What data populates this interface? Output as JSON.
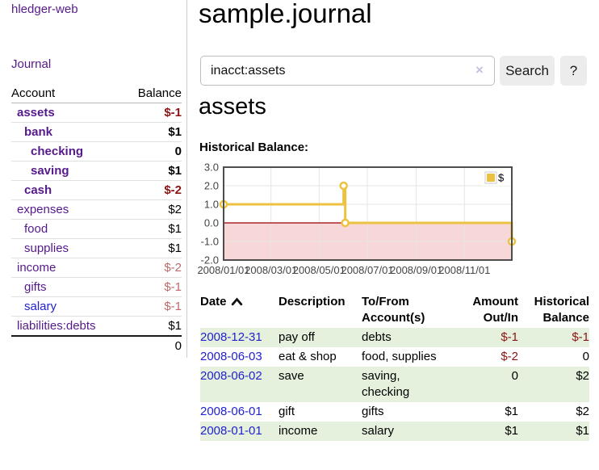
{
  "app": {
    "title_link": "hledger-web",
    "nav": [
      {
        "label": "Journal"
      }
    ]
  },
  "colors": {
    "link_purple": "#551a8b",
    "link_blue": "#2222cc",
    "negative": "#8b1414",
    "negative_soft": "#bb6a6a",
    "row_stripe_green": "#e5f1dd",
    "chart_line_gold": "#edc240",
    "chart_negative_band": "#f7d7d7",
    "chart_zero_line": "#990000",
    "chart_grid": "#e5e5e5",
    "chart_border": "#4d4d4d"
  },
  "sidebar_table": {
    "headers": {
      "account": "Account",
      "balance": "Balance"
    },
    "rows": [
      {
        "account": "assets",
        "indent": 1,
        "emphasis": true,
        "link_tone": "purple",
        "balance": "$-1",
        "balance_tone": "negative"
      },
      {
        "account": "bank",
        "indent": 2,
        "emphasis": true,
        "link_tone": "purple",
        "balance": "$1",
        "balance_tone": "normal"
      },
      {
        "account": "checking",
        "indent": 3,
        "emphasis": true,
        "link_tone": "purple",
        "balance": "0",
        "balance_tone": "normal"
      },
      {
        "account": "saving",
        "indent": 3,
        "emphasis": true,
        "link_tone": "purple",
        "balance": "$1",
        "balance_tone": "normal"
      },
      {
        "account": "cash",
        "indent": 2,
        "emphasis": true,
        "link_tone": "purple",
        "balance": "$-2",
        "balance_tone": "negative"
      },
      {
        "account": "expenses",
        "indent": 1,
        "emphasis": false,
        "link_tone": "purple",
        "balance": "$2",
        "balance_tone": "normal"
      },
      {
        "account": "food",
        "indent": 2,
        "emphasis": false,
        "link_tone": "purple",
        "balance": "$1",
        "balance_tone": "normal"
      },
      {
        "account": "supplies",
        "indent": 2,
        "emphasis": false,
        "link_tone": "purple",
        "balance": "$1",
        "balance_tone": "normal"
      },
      {
        "account": "income",
        "indent": 1,
        "emphasis": false,
        "link_tone": "purple",
        "balance": "$-2",
        "balance_tone": "negative-soft"
      },
      {
        "account": "gifts",
        "indent": 2,
        "emphasis": false,
        "link_tone": "purple",
        "balance": "$-1",
        "balance_tone": "negative-soft"
      },
      {
        "account": "salary",
        "indent": 2,
        "emphasis": false,
        "link_tone": "blue",
        "balance": "$-1",
        "balance_tone": "negative-soft"
      },
      {
        "account": "liabilities:debts",
        "indent": 1,
        "emphasis": false,
        "link_tone": "purple",
        "balance": "$1",
        "balance_tone": "normal"
      }
    ],
    "total": "0"
  },
  "header": {
    "title": "sample.journal"
  },
  "search": {
    "value": "inacct:assets",
    "clear_icon": "×",
    "search_button": "Search",
    "help_button": "?"
  },
  "account_page": {
    "heading": "assets",
    "chart_label": "Historical Balance:"
  },
  "chart_data": {
    "type": "line",
    "title": "Historical Balance:",
    "series": [
      {
        "name": "$",
        "color": "#edc240",
        "step": true,
        "points": [
          {
            "date": "2008-01-01",
            "value": 1
          },
          {
            "date": "2008-06-01",
            "value": 2
          },
          {
            "date": "2008-06-03",
            "value": 0
          },
          {
            "date": "2008-12-31",
            "value": -1
          }
        ]
      }
    ],
    "ylim": [
      -2,
      3
    ],
    "yticks": [
      3,
      2,
      1,
      0,
      -1,
      -2
    ],
    "xticks": [
      {
        "date": "2008-01-01",
        "label": "2008/01/01"
      },
      {
        "date": "2008-03-01",
        "label": "2008/03/01"
      },
      {
        "date": "2008-05-01",
        "label": "2008/05/01"
      },
      {
        "date": "2008-07-01",
        "label": "2008/07/01"
      },
      {
        "date": "2008-09-01",
        "label": "2008/09/01"
      },
      {
        "date": "2008-11-01",
        "label": "2008/11/01"
      }
    ],
    "x_range": [
      "2008-01-01",
      "2008-12-31"
    ],
    "grid": true,
    "legend_position": "top-right",
    "legend_label": "$",
    "zero_line_color": "#990000",
    "negative_region": {
      "from": 0,
      "to": -2,
      "color": "#f7d7d7"
    },
    "grid_color": "#e5e5e5",
    "border_color": "#4d4d4d"
  },
  "register": {
    "columns": [
      {
        "label": "Date",
        "sortable": true,
        "sort": "ascending",
        "align": "left"
      },
      {
        "label": "Description",
        "align": "left"
      },
      {
        "label": "To/From Account(s)",
        "align": "left"
      },
      {
        "label": "Amount Out/In",
        "align": "right"
      },
      {
        "label": "Historical Balance",
        "align": "right"
      }
    ],
    "rows": [
      {
        "date": "2008-12-31",
        "description": "pay off",
        "accounts": "debts",
        "amount": "$-1",
        "amount_tone": "negative",
        "balance": "$-1",
        "balance_tone": "negative"
      },
      {
        "date": "2008-06-03",
        "description": "eat & shop",
        "accounts": "food, supplies",
        "amount": "$-2",
        "amount_tone": "negative",
        "balance": "0",
        "balance_tone": "normal"
      },
      {
        "date": "2008-06-02",
        "description": "save",
        "accounts": "saving, checking",
        "amount": "0",
        "amount_tone": "normal",
        "balance": "$2",
        "balance_tone": "normal"
      },
      {
        "date": "2008-06-01",
        "description": "gift",
        "accounts": "gifts",
        "amount": "$1",
        "amount_tone": "normal",
        "balance": "$2",
        "balance_tone": "normal"
      },
      {
        "date": "2008-01-01",
        "description": "income",
        "accounts": "salary",
        "amount": "$1",
        "amount_tone": "normal",
        "balance": "$1",
        "balance_tone": "normal"
      }
    ]
  }
}
